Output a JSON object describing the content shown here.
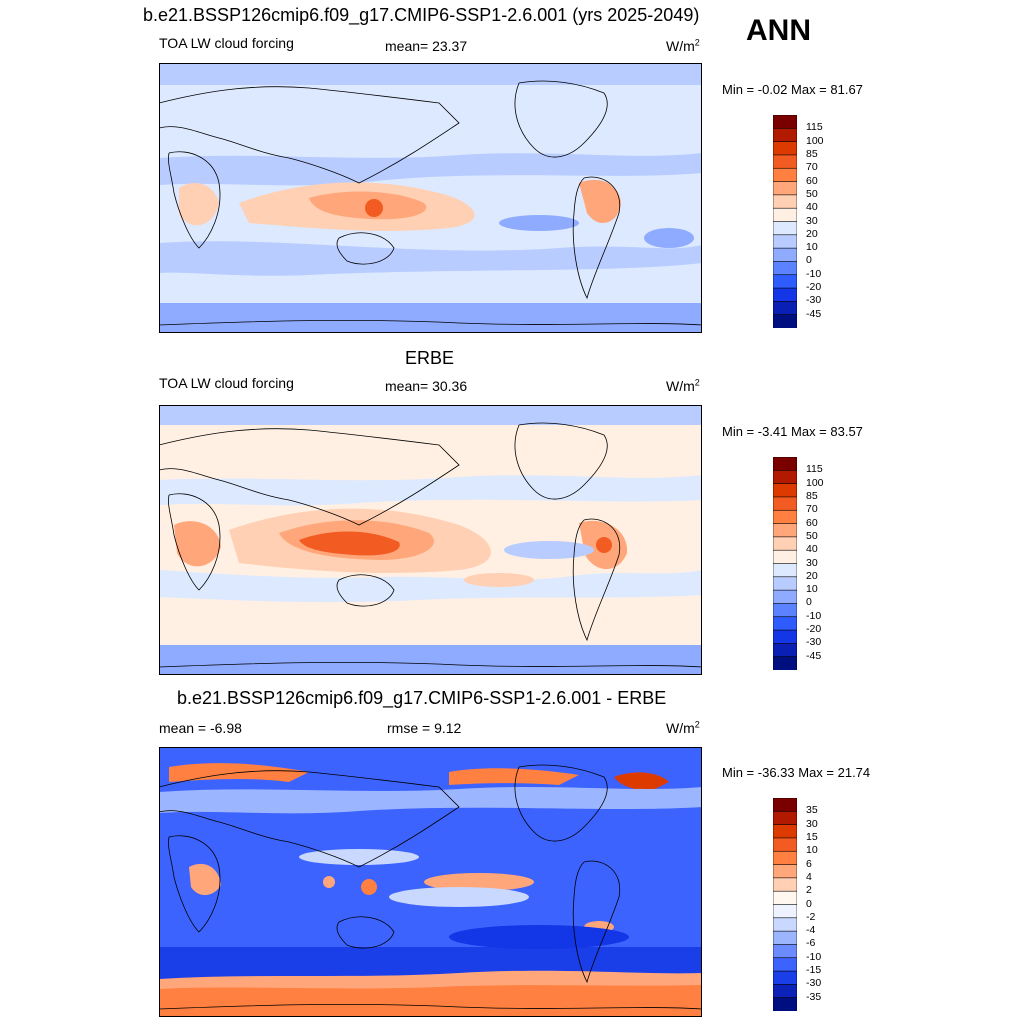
{
  "season": "ANN",
  "panels": [
    {
      "title": "b.e21.BSSP126cmip6.f09_g17.CMIP6-SSP1-2.6.001 (yrs 2025-2049)",
      "left_label": "TOA LW cloud forcing",
      "center_label": "mean=  23.37",
      "units": "W/m",
      "units_sup": "2",
      "minmax": "Min =  -0.02 Max =  81.67",
      "levels": [
        "115",
        "100",
        "85",
        "70",
        "60",
        "50",
        "40",
        "30",
        "20",
        "10",
        "0",
        "-10",
        "-20",
        "-30",
        "-45"
      ]
    },
    {
      "title": "ERBE",
      "left_label": "TOA LW cloud forcing",
      "center_label": "mean=  30.36",
      "units": "W/m",
      "units_sup": "2",
      "minmax": "Min =  -3.41 Max =  83.57",
      "levels": [
        "115",
        "100",
        "85",
        "70",
        "60",
        "50",
        "40",
        "30",
        "20",
        "10",
        "0",
        "-10",
        "-20",
        "-30",
        "-45"
      ]
    },
    {
      "title": "b.e21.BSSP126cmip6.f09_g17.CMIP6-SSP1-2.6.001 - ERBE",
      "left_label": "mean =  -6.98",
      "center_label": "rmse =   9.12",
      "units": "W/m",
      "units_sup": "2",
      "minmax": "Min = -36.33 Max =  21.74",
      "levels": [
        "35",
        "30",
        "15",
        "10",
        "6",
        "4",
        "2",
        "0",
        "-2",
        "-4",
        "-6",
        "-10",
        "-15",
        "-30",
        "-35"
      ]
    }
  ],
  "colors": {
    "fields": [
      "#7a0000",
      "#b21a00",
      "#dd3a00",
      "#f25c22",
      "#ff8040",
      "#ffa77a",
      "#ffd0b3",
      "#fff0e3",
      "#dde9ff",
      "#b8ccff",
      "#8eabff",
      "#5b83ff",
      "#2f5cff",
      "#1336e6",
      "#0a1fb4",
      "#000f80"
    ],
    "diff": [
      "#7a0000",
      "#b21a00",
      "#dd3a00",
      "#f25c22",
      "#ff8040",
      "#ffa77a",
      "#ffd0b3",
      "#fff7f0",
      "#eef3ff",
      "#c9d8ff",
      "#9cb5ff",
      "#6b8bff",
      "#3d63ff",
      "#1a3ee8",
      "#0c22b8",
      "#000f80"
    ]
  }
}
